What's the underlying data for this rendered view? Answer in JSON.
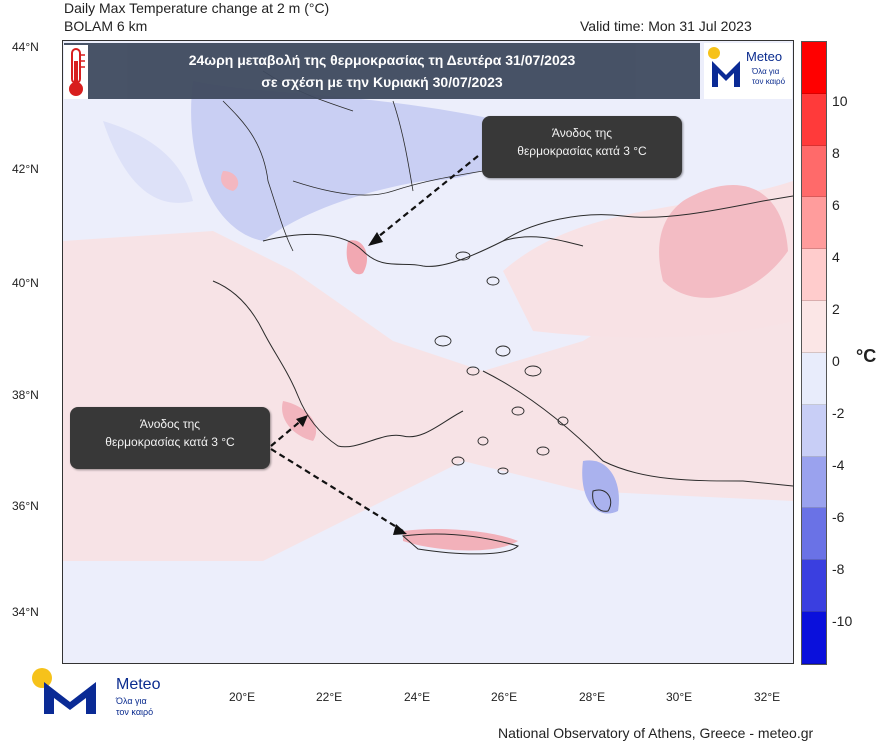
{
  "header": {
    "title": "Daily Max Temperature change at 2 m (°C)",
    "model": "BOLAM 6 km",
    "valid_time": "Valid time: Mon 31 Jul 2023"
  },
  "banner": {
    "line1": "24ωρη μεταβολή  της θερμοκρασίας  τη Δευτέρα 31/07/2023",
    "line2": "σε σχέση με την Κυριακή 30/07/2023"
  },
  "callouts": [
    {
      "line1": "Άνοδος της",
      "line2": "θερμοκρασίας κατά 3 °C"
    },
    {
      "line1": "Άνοδος της",
      "line2": "θερμοκρασίας κατά 3 °C"
    }
  ],
  "axes": {
    "lat_labels": [
      "44°N",
      "42°N",
      "40°N",
      "38°N",
      "36°N",
      "34°N"
    ],
    "lon_labels": [
      "20°E",
      "22°E",
      "24°E",
      "26°E",
      "28°E",
      "30°E",
      "32°E"
    ]
  },
  "colorbar": {
    "ticks": [
      "10",
      "8",
      "6",
      "4",
      "2",
      "0",
      "-2",
      "-4",
      "-6",
      "-8",
      "-10"
    ],
    "unit": "°C",
    "colors": [
      "#ff0000",
      "#ff3a3a",
      "#ff6a6a",
      "#ff9c9c",
      "#ffcccc",
      "#fbe6e6",
      "#e8ecfb",
      "#c8cef6",
      "#9aa2ee",
      "#6a72e6",
      "#3a3fe0",
      "#0a10dc"
    ]
  },
  "logo": {
    "brand": "Meteo",
    "tagline_line1": "Όλα για",
    "tagline_line2": "τον καιρό"
  },
  "footer": "National Observatory of Athens, Greece - meteo.gr"
}
